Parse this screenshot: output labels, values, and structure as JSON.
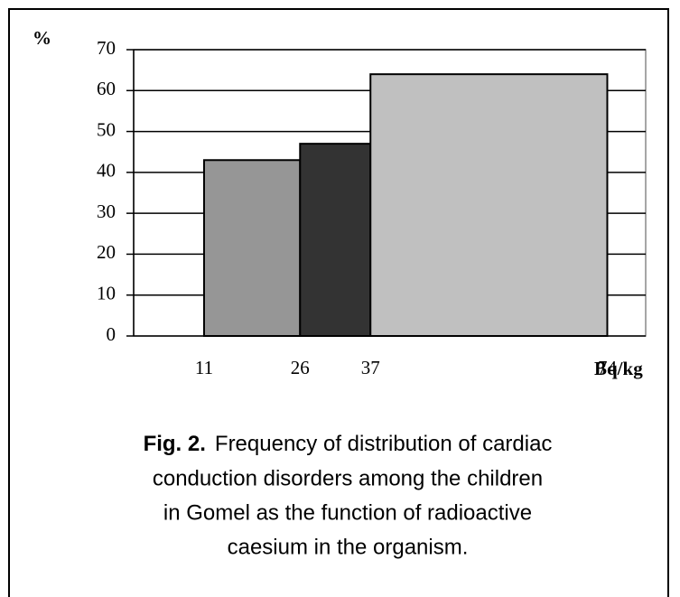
{
  "chart_data": {
    "type": "histogram",
    "y_label": "%",
    "x_label": "Bq/kg",
    "bins": [
      11,
      26,
      37,
      74
    ],
    "values": [
      43,
      47,
      64
    ],
    "colors": [
      "#969696",
      "#333333",
      "#c0c0c0"
    ],
    "xlim": [
      0,
      80
    ],
    "xticks": [
      11,
      26,
      37,
      74
    ],
    "ylim": [
      0,
      70
    ],
    "yticks": [
      0,
      10,
      20,
      30,
      40,
      50,
      60,
      70
    ],
    "grid": true,
    "caption_label": "Fig. 2.",
    "caption_lines": [
      "Frequency of distribution of cardiac",
      "conduction disorders among the children",
      "in Gomel as the function of radioactive",
      "caesium in the organism."
    ]
  }
}
